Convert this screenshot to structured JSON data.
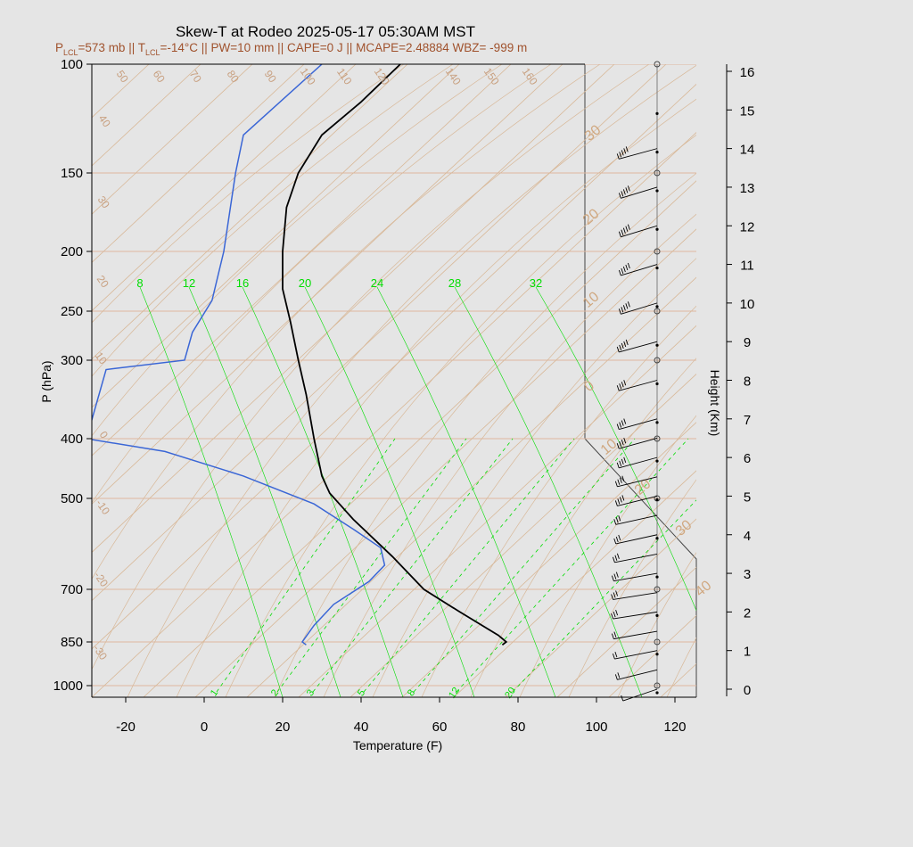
{
  "title": "Skew-T at Rodeo 2025-05-17 05:30AM MST",
  "subtitle": {
    "p_prefix": "P",
    "p_sub": "LCL",
    "p_value": "=573 mb || T",
    "t_sub": "LCL",
    "rest": "=-14°C || PW=10 mm || CAPE=0 J || MCAPE=2.48884 WBZ= -999 m"
  },
  "colors": {
    "temperature": "#000000",
    "dewpoint": "#3a66d6",
    "mixing_ratio": "#00dd00",
    "isotherm": "#d8b898",
    "isobar": "#e0b8a0",
    "background": "#e5e5e5"
  },
  "chart_data": {
    "type": "line",
    "xlabel": "Temperature (F)",
    "ylabel": "P (hPa)",
    "y2label": "Height (Km)",
    "x_ticks": [
      "-20",
      "0",
      "20",
      "40",
      "60",
      "80",
      "100",
      "120"
    ],
    "y_ticks": [
      "100",
      "150",
      "200",
      "250",
      "300",
      "400",
      "500",
      "700",
      "850",
      "1000"
    ],
    "height_ticks": [
      "0",
      "1",
      "2",
      "3",
      "4",
      "5",
      "6",
      "7",
      "8",
      "9",
      "10",
      "11",
      "12",
      "13",
      "14",
      "15",
      "16"
    ],
    "mixing_ratio_top_labels": [
      "8",
      "12",
      "16",
      "20",
      "24",
      "28",
      "32"
    ],
    "mixing_ratio_bottom_labels": [
      "1",
      "2",
      "3",
      "5",
      "8",
      "12",
      "20"
    ],
    "dry_adiabat_labels": [
      "50",
      "60",
      "70",
      "80",
      "90",
      "100",
      "110",
      "120",
      "140",
      "150",
      "160",
      "40",
      "30",
      "20",
      "10",
      "0",
      "-10",
      "-20",
      "-30"
    ],
    "isotherm_labels": [
      "30",
      "20",
      "10",
      "0",
      "10",
      "20",
      "30",
      "40"
    ],
    "series": [
      {
        "role": "temperature",
        "points": [
          [
            76,
            860
          ],
          [
            77,
            850
          ],
          [
            75,
            830
          ],
          [
            65,
            760
          ],
          [
            56,
            700
          ],
          [
            48,
            620
          ],
          [
            38,
            540
          ],
          [
            32,
            490
          ],
          [
            30,
            460
          ],
          [
            28,
            400
          ],
          [
            26,
            340
          ],
          [
            24,
            300
          ],
          [
            22,
            260
          ],
          [
            20,
            230
          ],
          [
            20,
            200
          ],
          [
            21,
            170
          ],
          [
            24,
            150
          ],
          [
            30,
            130
          ],
          [
            40,
            115
          ],
          [
            50,
            100
          ]
        ]
      },
      {
        "role": "dewpoint",
        "points": [
          [
            26,
            860
          ],
          [
            25,
            850
          ],
          [
            28,
            800
          ],
          [
            33,
            740
          ],
          [
            42,
            680
          ],
          [
            46,
            640
          ],
          [
            45,
            600
          ],
          [
            38,
            560
          ],
          [
            28,
            510
          ],
          [
            10,
            460
          ],
          [
            -10,
            420
          ],
          [
            -30,
            400
          ],
          [
            -25,
            310
          ],
          [
            -5,
            300
          ],
          [
            -3,
            270
          ],
          [
            2,
            240
          ],
          [
            5,
            200
          ],
          [
            8,
            150
          ],
          [
            10,
            130
          ],
          [
            30,
            100
          ]
        ]
      }
    ],
    "wind_barbs_kt": [
      {
        "km": 0.0,
        "speed": 10,
        "dir": 225
      },
      {
        "km": 0.5,
        "speed": 15,
        "dir": 240
      },
      {
        "km": 1.0,
        "speed": 20,
        "dir": 250
      },
      {
        "km": 1.5,
        "speed": 20,
        "dir": 255
      },
      {
        "km": 2.0,
        "speed": 25,
        "dir": 260
      },
      {
        "km": 2.5,
        "speed": 25,
        "dir": 260
      },
      {
        "km": 3.0,
        "speed": 25,
        "dir": 255
      },
      {
        "km": 3.5,
        "speed": 30,
        "dir": 250
      },
      {
        "km": 4.0,
        "speed": 30,
        "dir": 245
      },
      {
        "km": 4.5,
        "speed": 30,
        "dir": 245
      },
      {
        "km": 5.0,
        "speed": 35,
        "dir": 240
      },
      {
        "km": 5.5,
        "speed": 35,
        "dir": 240
      },
      {
        "km": 6.0,
        "speed": 35,
        "dir": 235
      },
      {
        "km": 6.5,
        "speed": 40,
        "dir": 235
      },
      {
        "km": 7.0,
        "speed": 40,
        "dir": 235
      },
      {
        "km": 8.0,
        "speed": 40,
        "dir": 235
      },
      {
        "km": 9.0,
        "speed": 45,
        "dir": 235
      },
      {
        "km": 10.0,
        "speed": 45,
        "dir": 230
      },
      {
        "km": 11.0,
        "speed": 45,
        "dir": 230
      },
      {
        "km": 12.0,
        "speed": 50,
        "dir": 230
      },
      {
        "km": 13.0,
        "speed": 50,
        "dir": 230
      },
      {
        "km": 14.0,
        "speed": 50,
        "dir": 235
      }
    ]
  }
}
